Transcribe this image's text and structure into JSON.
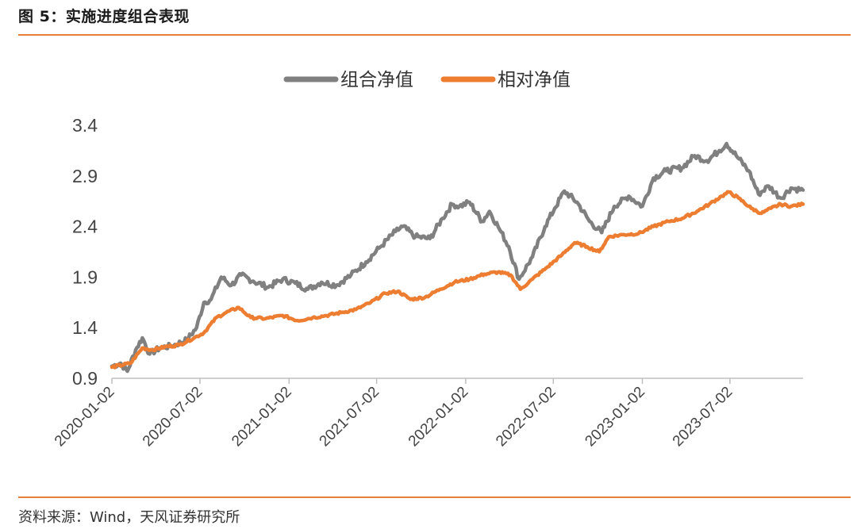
{
  "header": {
    "title": "图 5：实施进度组合表现"
  },
  "footer": {
    "source": "资料来源：Wind，天风证券研究所"
  },
  "chart_data": {
    "type": "line",
    "title": "",
    "xlabel": "",
    "ylabel": "",
    "ylim": [
      0.9,
      3.4
    ],
    "yticks": [
      "3.4",
      "2.9",
      "2.4",
      "1.9",
      "1.4",
      "0.9"
    ],
    "xticks": [
      "2020-01-02",
      "2020-07-02",
      "2021-01-02",
      "2021-07-02",
      "2022-01-02",
      "2022-07-02",
      "2023-01-02",
      "2023-07-02"
    ],
    "xlim": [
      "2020-01-02",
      "2023-11-30"
    ],
    "grid": false,
    "legend": "top",
    "series": [
      {
        "name": "组合净值",
        "color": "#808080",
        "points": [
          [
            "2020-01-02",
            1.02
          ],
          [
            "2020-01-20",
            1.05
          ],
          [
            "2020-02-03",
            0.97
          ],
          [
            "2020-02-20",
            1.18
          ],
          [
            "2020-03-05",
            1.3
          ],
          [
            "2020-03-20",
            1.14
          ],
          [
            "2020-04-10",
            1.2
          ],
          [
            "2020-05-05",
            1.22
          ],
          [
            "2020-06-05",
            1.28
          ],
          [
            "2020-06-25",
            1.4
          ],
          [
            "2020-07-10",
            1.65
          ],
          [
            "2020-07-25",
            1.68
          ],
          [
            "2020-08-15",
            1.9
          ],
          [
            "2020-09-05",
            1.82
          ],
          [
            "2020-09-25",
            1.92
          ],
          [
            "2020-10-20",
            1.86
          ],
          [
            "2020-11-20",
            1.8
          ],
          [
            "2020-12-20",
            1.88
          ],
          [
            "2021-01-15",
            1.84
          ],
          [
            "2021-02-10",
            1.78
          ],
          [
            "2021-03-10",
            1.85
          ],
          [
            "2021-04-10",
            1.82
          ],
          [
            "2021-05-10",
            1.92
          ],
          [
            "2021-06-10",
            2.05
          ],
          [
            "2021-07-10",
            2.2
          ],
          [
            "2021-08-10",
            2.35
          ],
          [
            "2021-08-25",
            2.4
          ],
          [
            "2021-09-20",
            2.3
          ],
          [
            "2021-10-20",
            2.28
          ],
          [
            "2021-11-15",
            2.48
          ],
          [
            "2021-12-05",
            2.62
          ],
          [
            "2021-12-20",
            2.6
          ],
          [
            "2022-01-10",
            2.64
          ],
          [
            "2022-02-05",
            2.45
          ],
          [
            "2022-02-20",
            2.55
          ],
          [
            "2022-03-10",
            2.4
          ],
          [
            "2022-04-01",
            2.2
          ],
          [
            "2022-04-22",
            1.88
          ],
          [
            "2022-05-20",
            2.1
          ],
          [
            "2022-06-15",
            2.4
          ],
          [
            "2022-07-05",
            2.58
          ],
          [
            "2022-07-25",
            2.75
          ],
          [
            "2022-08-20",
            2.64
          ],
          [
            "2022-09-15",
            2.45
          ],
          [
            "2022-10-10",
            2.34
          ],
          [
            "2022-11-05",
            2.6
          ],
          [
            "2022-12-05",
            2.7
          ],
          [
            "2023-01-02",
            2.6
          ],
          [
            "2023-01-25",
            2.88
          ],
          [
            "2023-02-20",
            2.95
          ],
          [
            "2023-03-25",
            2.98
          ],
          [
            "2023-04-20",
            3.1
          ],
          [
            "2023-05-15",
            3.05
          ],
          [
            "2023-06-10",
            3.15
          ],
          [
            "2023-06-25",
            3.22
          ],
          [
            "2023-07-15",
            3.1
          ],
          [
            "2023-08-10",
            2.95
          ],
          [
            "2023-08-30",
            2.72
          ],
          [
            "2023-09-20",
            2.8
          ],
          [
            "2023-10-15",
            2.68
          ],
          [
            "2023-11-05",
            2.78
          ],
          [
            "2023-11-30",
            2.76
          ]
        ]
      },
      {
        "name": "相对净值",
        "color": "#ed7d31",
        "points": [
          [
            "2020-01-02",
            1.01
          ],
          [
            "2020-02-10",
            1.05
          ],
          [
            "2020-03-05",
            1.2
          ],
          [
            "2020-03-25",
            1.18
          ],
          [
            "2020-04-20",
            1.21
          ],
          [
            "2020-05-20",
            1.23
          ],
          [
            "2020-06-20",
            1.3
          ],
          [
            "2020-07-10",
            1.35
          ],
          [
            "2020-08-05",
            1.5
          ],
          [
            "2020-08-25",
            1.55
          ],
          [
            "2020-09-20",
            1.6
          ],
          [
            "2020-10-15",
            1.5
          ],
          [
            "2020-11-15",
            1.49
          ],
          [
            "2020-12-20",
            1.52
          ],
          [
            "2021-01-20",
            1.47
          ],
          [
            "2021-02-20",
            1.5
          ],
          [
            "2021-03-20",
            1.52
          ],
          [
            "2021-04-20",
            1.55
          ],
          [
            "2021-05-20",
            1.58
          ],
          [
            "2021-06-20",
            1.65
          ],
          [
            "2021-07-20",
            1.74
          ],
          [
            "2021-08-15",
            1.76
          ],
          [
            "2021-09-10",
            1.68
          ],
          [
            "2021-10-10",
            1.7
          ],
          [
            "2021-11-10",
            1.78
          ],
          [
            "2021-12-10",
            1.85
          ],
          [
            "2022-01-10",
            1.88
          ],
          [
            "2022-02-10",
            1.93
          ],
          [
            "2022-03-10",
            1.95
          ],
          [
            "2022-04-05",
            1.92
          ],
          [
            "2022-04-25",
            1.78
          ],
          [
            "2022-05-20",
            1.88
          ],
          [
            "2022-06-20",
            2.0
          ],
          [
            "2022-07-20",
            2.12
          ],
          [
            "2022-08-15",
            2.24
          ],
          [
            "2022-09-10",
            2.2
          ],
          [
            "2022-10-05",
            2.15
          ],
          [
            "2022-10-25",
            2.3
          ],
          [
            "2022-11-25",
            2.32
          ],
          [
            "2022-12-25",
            2.33
          ],
          [
            "2023-01-25",
            2.4
          ],
          [
            "2023-02-25",
            2.45
          ],
          [
            "2023-03-25",
            2.48
          ],
          [
            "2023-04-25",
            2.55
          ],
          [
            "2023-05-20",
            2.62
          ],
          [
            "2023-06-15",
            2.7
          ],
          [
            "2023-06-30",
            2.74
          ],
          [
            "2023-07-20",
            2.68
          ],
          [
            "2023-08-15",
            2.58
          ],
          [
            "2023-09-05",
            2.53
          ],
          [
            "2023-09-25",
            2.58
          ],
          [
            "2023-10-15",
            2.62
          ],
          [
            "2023-11-05",
            2.6
          ],
          [
            "2023-11-30",
            2.62
          ]
        ]
      }
    ]
  }
}
